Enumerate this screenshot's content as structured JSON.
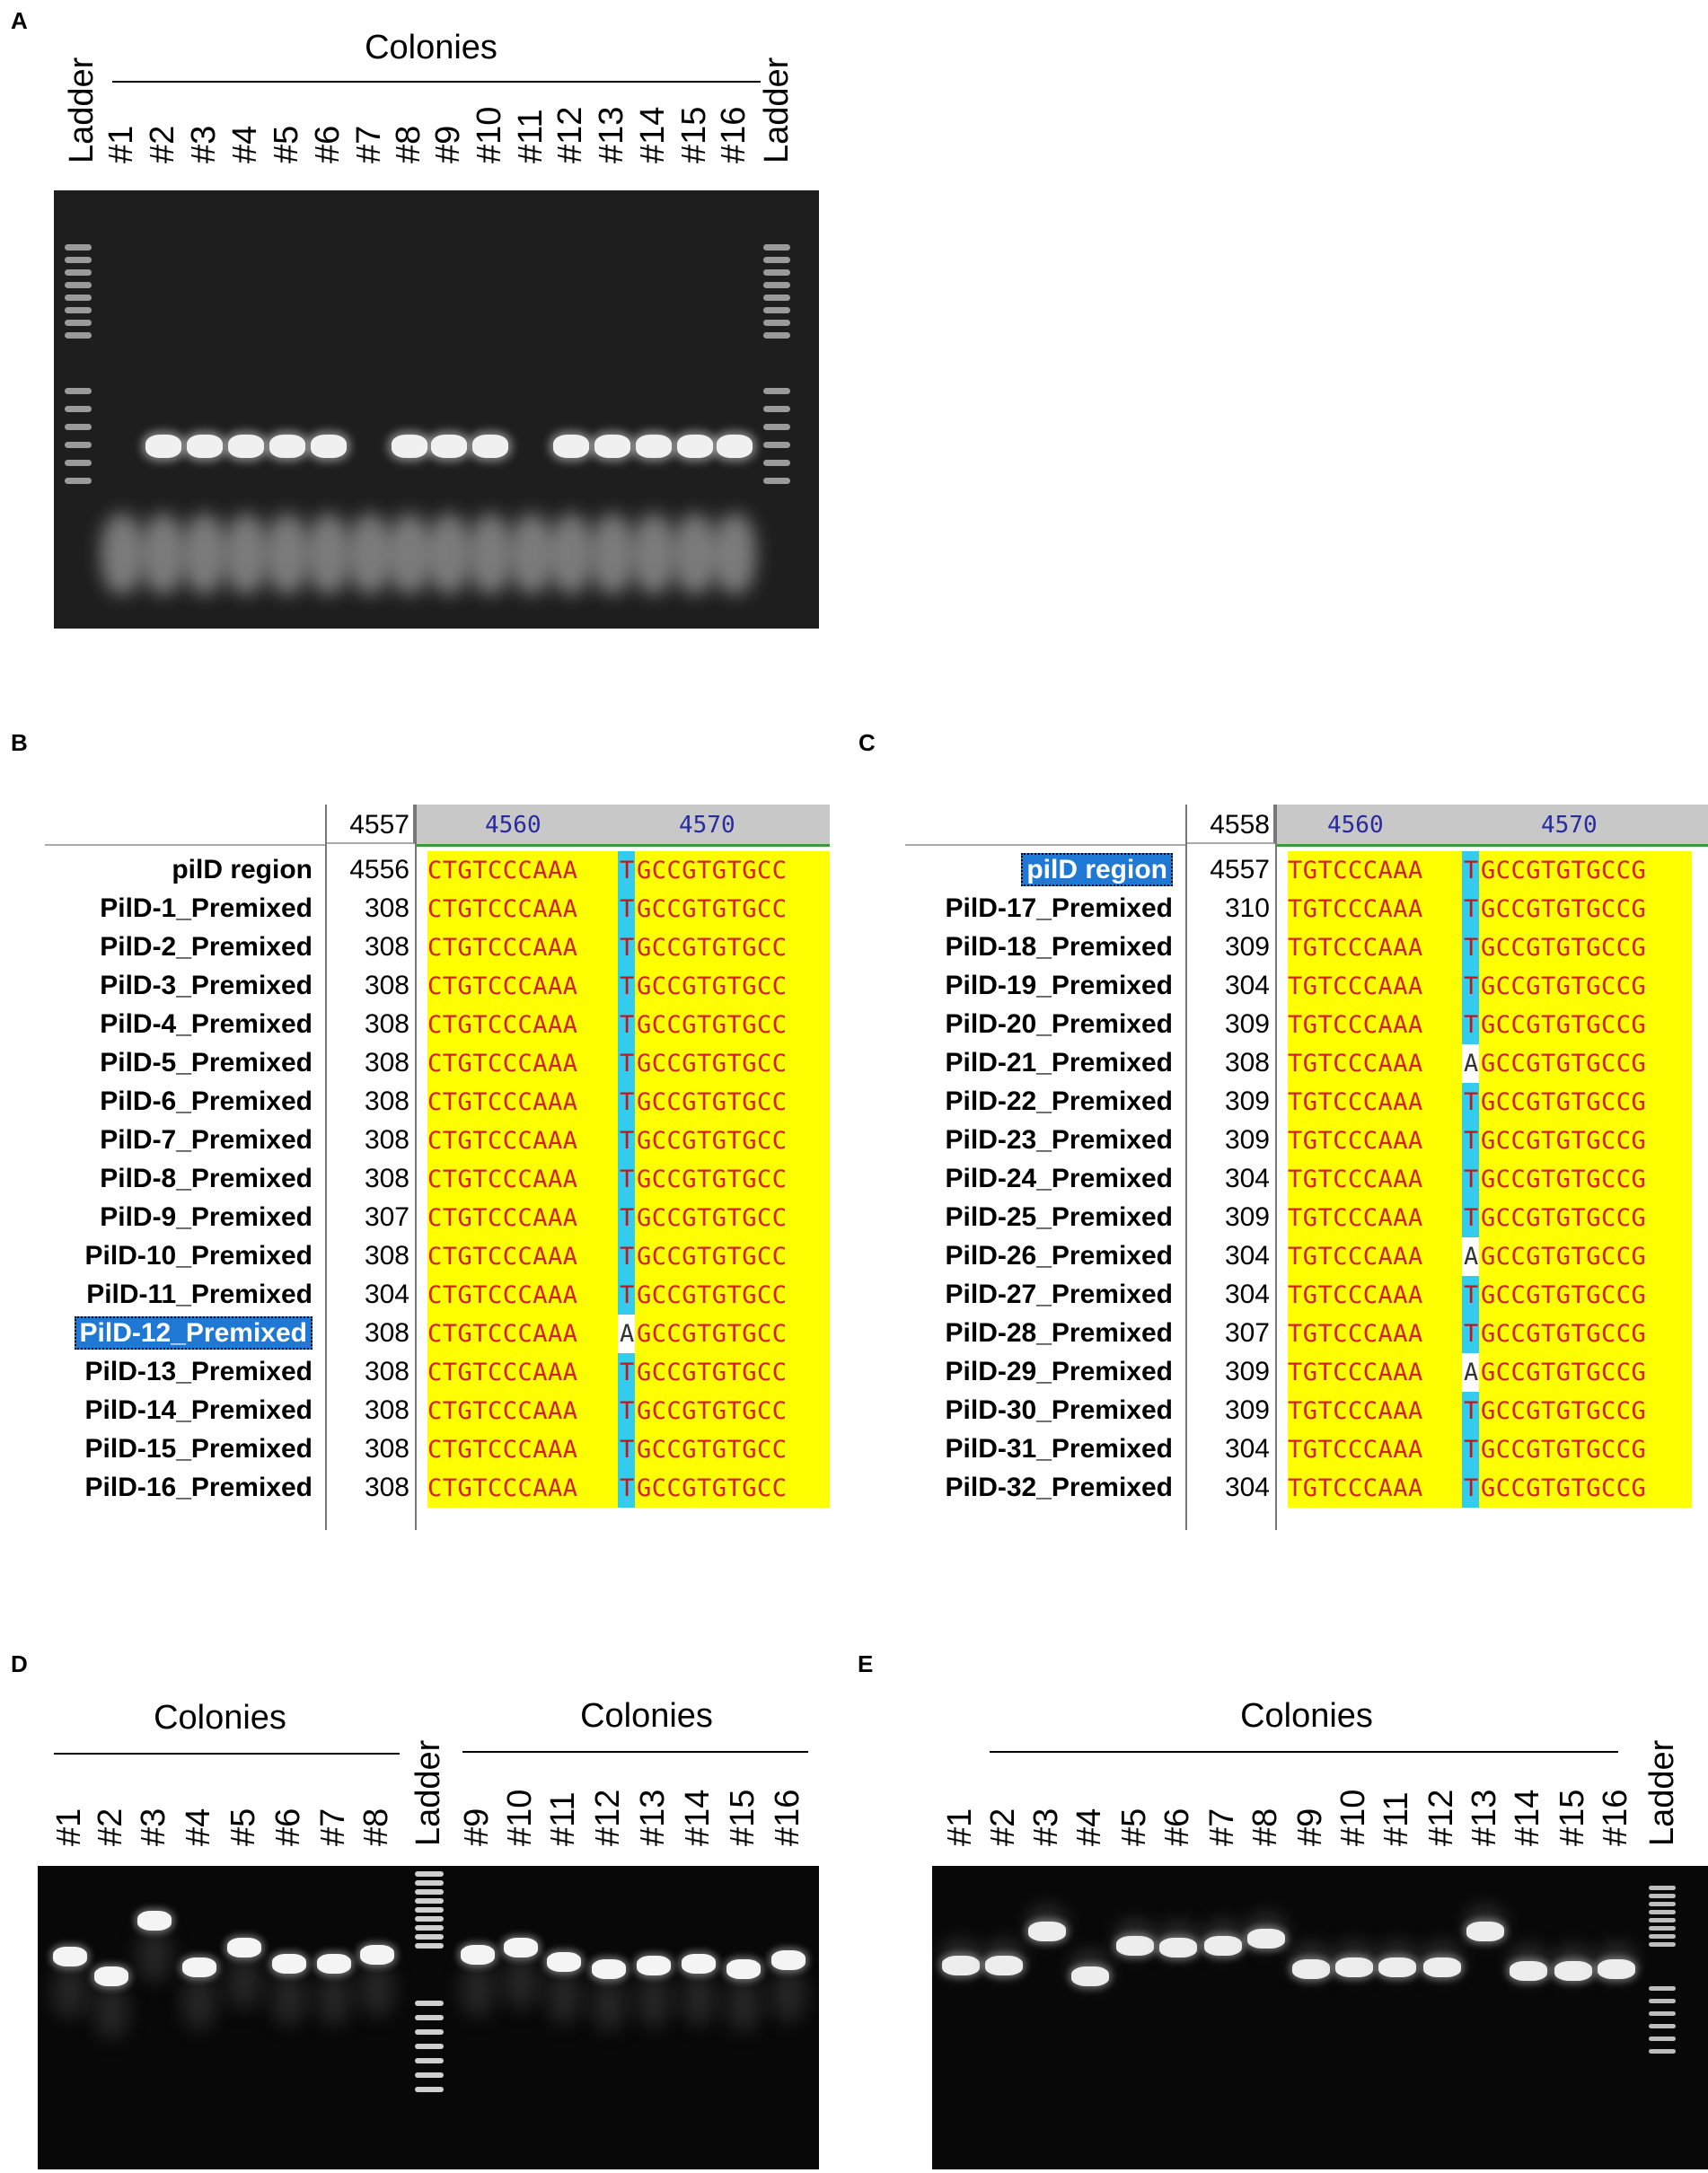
{
  "panels": {
    "A": {
      "letter": "A",
      "header": "Colonies",
      "lanes": [
        "Ladder",
        "#1",
        "#2",
        "#3",
        "#4",
        "#5",
        "#6",
        "#7",
        "#8",
        "#9",
        "#10",
        "#11",
        "#12",
        "#13",
        "#14",
        "#15",
        "#16",
        "Ladder"
      ]
    },
    "B": {
      "letter": "B",
      "header_num": "4557",
      "ruler": [
        "4560",
        "4570"
      ],
      "reference": {
        "name": "pilD region",
        "num": "4556"
      },
      "sequence_left": "CTGTCCCAAA",
      "sequence_right": "GCCGTGTGCC",
      "rows": [
        {
          "name": "PilD-1_Premixed",
          "num": "308",
          "base": "T"
        },
        {
          "name": "PilD-2_Premixed",
          "num": "308",
          "base": "T"
        },
        {
          "name": "PilD-3_Premixed",
          "num": "308",
          "base": "T"
        },
        {
          "name": "PilD-4_Premixed",
          "num": "308",
          "base": "T"
        },
        {
          "name": "PilD-5_Premixed",
          "num": "308",
          "base": "T"
        },
        {
          "name": "PilD-6_Premixed",
          "num": "308",
          "base": "T"
        },
        {
          "name": "PilD-7_Premixed",
          "num": "308",
          "base": "T"
        },
        {
          "name": "PilD-8_Premixed",
          "num": "308",
          "base": "T"
        },
        {
          "name": "PilD-9_Premixed",
          "num": "307",
          "base": "T"
        },
        {
          "name": "PilD-10_Premixed",
          "num": "308",
          "base": "T"
        },
        {
          "name": "PilD-11_Premixed",
          "num": "304",
          "base": "T"
        },
        {
          "name": "PilD-12_Premixed",
          "num": "308",
          "base": "A"
        },
        {
          "name": "PilD-13_Premixed",
          "num": "308",
          "base": "T"
        },
        {
          "name": "PilD-14_Premixed",
          "num": "308",
          "base": "T"
        },
        {
          "name": "PilD-15_Premixed",
          "num": "308",
          "base": "T"
        },
        {
          "name": "PilD-16_Premixed",
          "num": "308",
          "base": "T"
        }
      ]
    },
    "C": {
      "letter": "C",
      "header_num": "4558",
      "ruler": [
        "4560",
        "4570"
      ],
      "reference": {
        "name": "pilD region",
        "num": "4557"
      },
      "sequence_left": "TGTCCCAAA",
      "sequence_right": "GCCGTGTGCCG",
      "rows": [
        {
          "name": "PilD-17_Premixed",
          "num": "310",
          "base": "T"
        },
        {
          "name": "PilD-18_Premixed",
          "num": "309",
          "base": "T"
        },
        {
          "name": "PilD-19_Premixed",
          "num": "304",
          "base": "T"
        },
        {
          "name": "PilD-20_Premixed",
          "num": "309",
          "base": "T"
        },
        {
          "name": "PilD-21_Premixed",
          "num": "308",
          "base": "A"
        },
        {
          "name": "PilD-22_Premixed",
          "num": "309",
          "base": "T"
        },
        {
          "name": "PilD-23_Premixed",
          "num": "309",
          "base": "T"
        },
        {
          "name": "PilD-24_Premixed",
          "num": "304",
          "base": "T"
        },
        {
          "name": "PilD-25_Premixed",
          "num": "309",
          "base": "T"
        },
        {
          "name": "PilD-26_Premixed",
          "num": "304",
          "base": "A"
        },
        {
          "name": "PilD-27_Premixed",
          "num": "304",
          "base": "T"
        },
        {
          "name": "PilD-28_Premixed",
          "num": "307",
          "base": "T"
        },
        {
          "name": "PilD-29_Premixed",
          "num": "309",
          "base": "A"
        },
        {
          "name": "PilD-30_Premixed",
          "num": "309",
          "base": "T"
        },
        {
          "name": "PilD-31_Premixed",
          "num": "304",
          "base": "T"
        },
        {
          "name": "PilD-32_Premixed",
          "num": "304",
          "base": "T"
        }
      ]
    },
    "D": {
      "letter": "D",
      "header_left": "Colonies",
      "header_right": "Colonies",
      "lanes": [
        "#1",
        "#2",
        "#3",
        "#4",
        "#5",
        "#6",
        "#7",
        "#8",
        "Ladder",
        "#9",
        "#10",
        "#11",
        "#12",
        "#13",
        "#14",
        "#15",
        "#16"
      ]
    },
    "E": {
      "letter": "E",
      "header": "Colonies",
      "lanes": [
        "#1",
        "#2",
        "#3",
        "#4",
        "#5",
        "#6",
        "#7",
        "#8",
        "#9",
        "#10",
        "#11",
        "#12",
        "#13",
        "#14",
        "#15",
        "#16",
        "Ladder"
      ]
    }
  },
  "colors": {
    "sequence_bg": "#ffff00",
    "sequence_text": "#d42020",
    "highlight": "#33ccee",
    "selection": "#1f78d4"
  }
}
